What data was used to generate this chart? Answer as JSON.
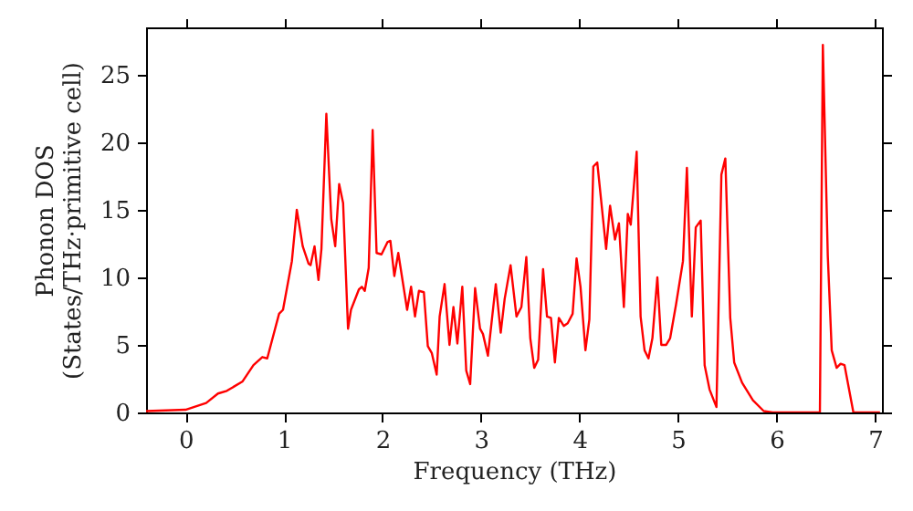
{
  "chart_data": {
    "type": "line",
    "xlabel": "Frequency (THz)",
    "ylabel": "Phonon DOS\n(States/THz·primitive cell)",
    "x": [
      -0.4,
      0,
      0.21,
      0.33,
      0.42,
      0.58,
      0.69,
      0.78,
      0.83,
      0.95,
      0.99,
      1.08,
      1.13,
      1.19,
      1.25,
      1.27,
      1.31,
      1.35,
      1.38,
      1.43,
      1.48,
      1.52,
      1.56,
      1.6,
      1.65,
      1.68,
      1.76,
      1.79,
      1.82,
      1.86,
      1.9,
      1.94,
      1.99,
      2.05,
      2.08,
      2.12,
      2.16,
      2.25,
      2.29,
      2.33,
      2.37,
      2.42,
      2.46,
      2.5,
      2.55,
      2.58,
      2.63,
      2.68,
      2.72,
      2.76,
      2.81,
      2.85,
      2.89,
      2.94,
      2.99,
      3.02,
      3.07,
      3.15,
      3.2,
      3.24,
      3.3,
      3.36,
      3.41,
      3.46,
      3.5,
      3.54,
      3.58,
      3.63,
      3.67,
      3.71,
      3.75,
      3.79,
      3.84,
      3.88,
      3.93,
      3.97,
      4.01,
      4.06,
      4.1,
      4.14,
      4.18,
      4.27,
      4.31,
      4.36,
      4.4,
      4.45,
      4.49,
      4.52,
      4.58,
      4.62,
      4.66,
      4.7,
      4.74,
      4.79,
      4.83,
      4.88,
      4.92,
      4.98,
      5.05,
      5.09,
      5.14,
      5.18,
      5.23,
      5.27,
      5.32,
      5.39,
      5.44,
      5.48,
      5.53,
      5.57,
      5.65,
      5.76,
      5.87,
      5.96,
      6.44,
      6.47,
      6.52,
      6.56,
      6.61,
      6.65,
      6.69,
      6.78,
      7.05
    ],
    "series": [
      {
        "color": "#ff0000",
        "values": [
          0.1,
          0.2,
          0.7,
          1.4,
          1.6,
          2.3,
          3.5,
          4.1,
          4.0,
          7.3,
          7.6,
          11.2,
          15.0,
          12.3,
          11.0,
          10.9,
          12.3,
          9.8,
          12.1,
          22.1,
          14.3,
          12.3,
          16.9,
          15.5,
          6.2,
          7.6,
          9.1,
          9.3,
          9.0,
          10.7,
          20.9,
          11.8,
          11.7,
          12.6,
          12.7,
          10.1,
          11.8,
          7.6,
          9.3,
          7.1,
          9.0,
          8.9,
          4.9,
          4.4,
          2.8,
          7.1,
          9.5,
          5.0,
          7.8,
          5.1,
          9.3,
          3.1,
          2.1,
          9.2,
          6.2,
          5.8,
          4.2,
          9.5,
          5.9,
          8.4,
          10.9,
          7.1,
          7.8,
          11.5,
          5.5,
          3.3,
          3.9,
          10.6,
          7.1,
          7.0,
          3.7,
          7.0,
          6.4,
          6.6,
          7.3,
          11.4,
          9.3,
          4.6,
          6.9,
          18.2,
          18.5,
          12.1,
          15.3,
          12.8,
          14.0,
          7.8,
          14.7,
          13.9,
          19.3,
          7.1,
          4.6,
          4.0,
          5.5,
          10.0,
          5.0,
          5.0,
          5.5,
          8.0,
          11.2,
          18.1,
          7.1,
          13.7,
          14.2,
          3.5,
          1.7,
          0.4,
          17.6,
          18.8,
          7.0,
          3.7,
          2.2,
          0.9,
          0.1,
          0,
          0,
          27.2,
          11.6,
          4.6,
          3.3,
          3.6,
          3.5,
          0,
          0
        ]
      }
    ],
    "xlim": [
      -0.4,
      7.07
    ],
    "ylim": [
      0,
      28.5
    ],
    "xticks": [
      0,
      1,
      2,
      3,
      4,
      5,
      6,
      7
    ],
    "yticks": [
      0,
      5,
      10,
      15,
      20,
      25
    ],
    "grid": false,
    "marker": "none",
    "line_style": "solid"
  }
}
